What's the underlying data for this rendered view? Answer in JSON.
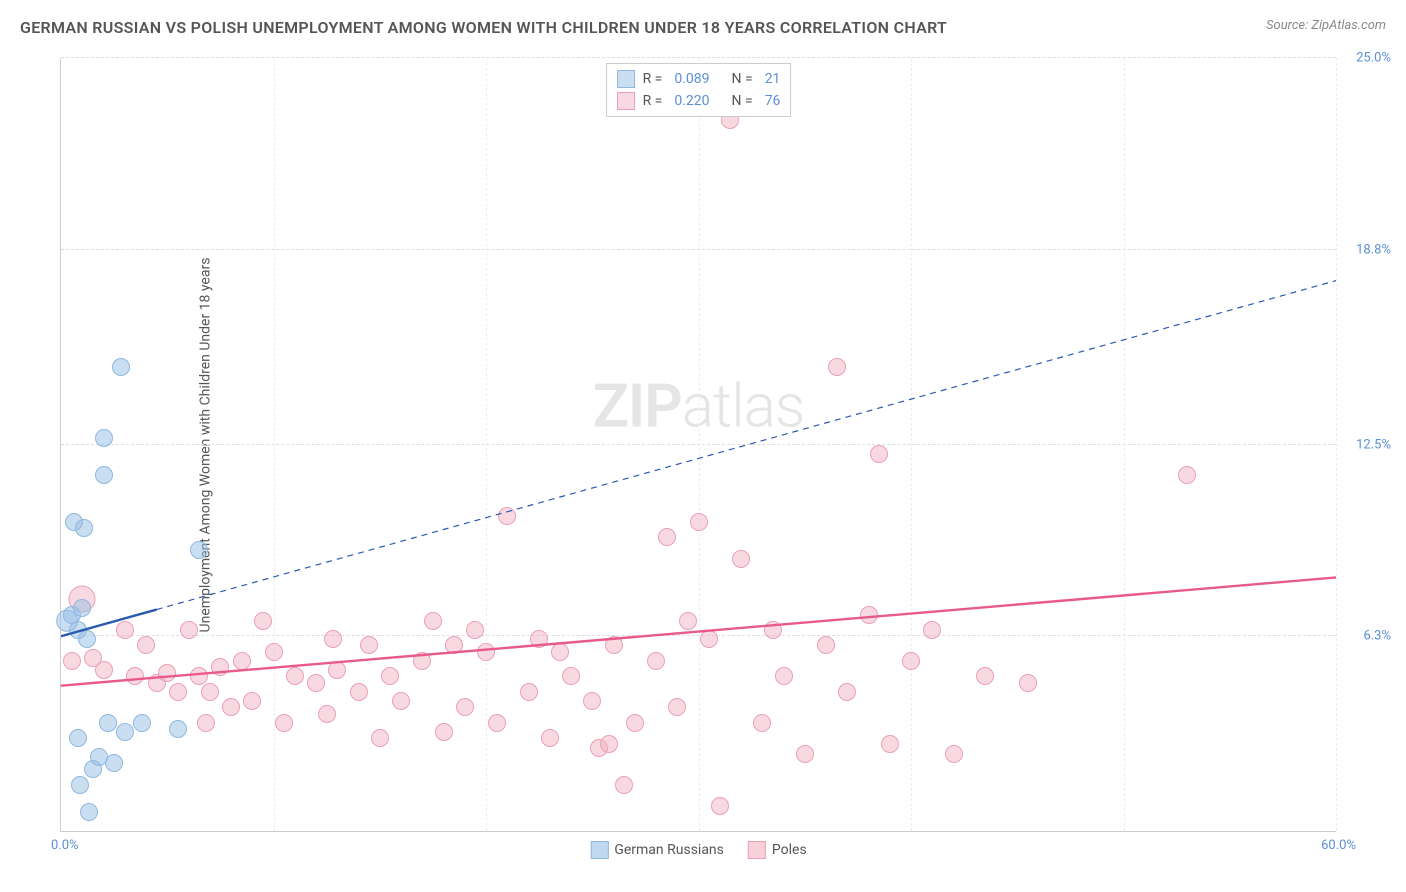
{
  "header": {
    "title": "GERMAN RUSSIAN VS POLISH UNEMPLOYMENT AMONG WOMEN WITH CHILDREN UNDER 18 YEARS CORRELATION CHART",
    "source": "Source: ZipAtlas.com"
  },
  "watermark": {
    "part1": "ZIP",
    "part2": "atlas"
  },
  "chart": {
    "type": "scatter",
    "ylabel": "Unemployment Among Women with Children Under 18 years",
    "xlim": [
      0,
      60
    ],
    "ylim": [
      0,
      25
    ],
    "x_ticks": [
      {
        "pos": 0,
        "label": "0.0%"
      },
      {
        "pos": 60,
        "label": "60.0%"
      }
    ],
    "x_gridlines": [
      10,
      20,
      30,
      40,
      50,
      60
    ],
    "y_ticks": [
      {
        "pos": 6.3,
        "label": "6.3%"
      },
      {
        "pos": 12.5,
        "label": "12.5%"
      },
      {
        "pos": 18.8,
        "label": "18.8%"
      },
      {
        "pos": 25.0,
        "label": "25.0%"
      }
    ],
    "background_color": "#ffffff",
    "grid_color": "#dddddd",
    "series": [
      {
        "name": "German Russians",
        "color_fill": "rgba(150,190,230,0.5)",
        "color_stroke": "#8fb8e0",
        "trend_color": "#2a5bb0",
        "trend_dash_after_x": 4.5,
        "R": "0.089",
        "N": "21",
        "point_radius": 9,
        "points": [
          [
            0.3,
            6.8,
            1.2
          ],
          [
            0.5,
            7.0
          ],
          [
            0.8,
            6.5
          ],
          [
            1.0,
            7.2
          ],
          [
            1.2,
            6.2
          ],
          [
            0.6,
            10.0
          ],
          [
            2.0,
            11.5
          ],
          [
            2.2,
            3.5
          ],
          [
            1.5,
            2.0
          ],
          [
            0.8,
            3.0
          ],
          [
            3.0,
            3.2
          ],
          [
            5.5,
            3.3
          ],
          [
            2.8,
            15.0
          ],
          [
            2.0,
            12.7
          ],
          [
            6.5,
            9.1
          ],
          [
            0.9,
            1.5
          ],
          [
            2.5,
            2.2
          ],
          [
            1.8,
            2.4
          ],
          [
            1.1,
            9.8
          ],
          [
            3.8,
            3.5
          ],
          [
            1.3,
            0.6
          ]
        ],
        "trendline": {
          "x1": 0,
          "y1": 6.3,
          "x2": 60,
          "y2": 17.8
        }
      },
      {
        "name": "Poles",
        "color_fill": "rgba(240,170,190,0.45)",
        "color_stroke": "#eaa0b5",
        "trend_color": "#e85a8a",
        "R": "0.220",
        "N": "76",
        "point_radius": 9,
        "points": [
          [
            1.0,
            7.5,
            1.5
          ],
          [
            0.5,
            5.5
          ],
          [
            1.5,
            5.6
          ],
          [
            2.0,
            5.2
          ],
          [
            3.0,
            6.5
          ],
          [
            3.5,
            5.0
          ],
          [
            4.0,
            6.0
          ],
          [
            4.5,
            4.8
          ],
          [
            5.0,
            5.1
          ],
          [
            5.5,
            4.5
          ],
          [
            6.0,
            6.5
          ],
          [
            6.5,
            5.0
          ],
          [
            7.0,
            4.5
          ],
          [
            7.5,
            5.3
          ],
          [
            8.0,
            4.0
          ],
          [
            8.5,
            5.5
          ],
          [
            9.0,
            4.2
          ],
          [
            10.0,
            5.8
          ],
          [
            10.5,
            3.5
          ],
          [
            11.0,
            5.0
          ],
          [
            12.0,
            4.8
          ],
          [
            12.5,
            3.8
          ],
          [
            13.0,
            5.2
          ],
          [
            14.0,
            4.5
          ],
          [
            14.5,
            6.0
          ],
          [
            15.0,
            3.0
          ],
          [
            15.5,
            5.0
          ],
          [
            16.0,
            4.2
          ],
          [
            17.0,
            5.5
          ],
          [
            18.0,
            3.2
          ],
          [
            18.5,
            6.0
          ],
          [
            19.0,
            4.0
          ],
          [
            20.0,
            5.8
          ],
          [
            20.5,
            3.5
          ],
          [
            21.0,
            10.2
          ],
          [
            22.0,
            4.5
          ],
          [
            22.5,
            6.2
          ],
          [
            23.0,
            3.0
          ],
          [
            24.0,
            5.0
          ],
          [
            25.0,
            4.2
          ],
          [
            25.3,
            2.7
          ],
          [
            25.8,
            2.8
          ],
          [
            26.0,
            6.0
          ],
          [
            26.5,
            1.5
          ],
          [
            27.0,
            3.5
          ],
          [
            28.0,
            5.5
          ],
          [
            28.5,
            9.5
          ],
          [
            29.0,
            4.0
          ],
          [
            30.0,
            10.0
          ],
          [
            30.5,
            6.2
          ],
          [
            31.0,
            0.8
          ],
          [
            31.5,
            23.0
          ],
          [
            32.0,
            8.8
          ],
          [
            33.0,
            3.5
          ],
          [
            33.5,
            6.5
          ],
          [
            34.0,
            5.0
          ],
          [
            35.0,
            2.5
          ],
          [
            36.0,
            6.0
          ],
          [
            36.5,
            15.0
          ],
          [
            37.0,
            4.5
          ],
          [
            38.0,
            7.0
          ],
          [
            38.5,
            12.2
          ],
          [
            39.0,
            2.8
          ],
          [
            40.0,
            5.5
          ],
          [
            41.0,
            6.5
          ],
          [
            42.0,
            2.5
          ],
          [
            43.5,
            5.0
          ],
          [
            45.5,
            4.8
          ],
          [
            53.0,
            11.5
          ],
          [
            29.5,
            6.8
          ],
          [
            17.5,
            6.8
          ],
          [
            23.5,
            5.8
          ],
          [
            12.8,
            6.2
          ],
          [
            19.5,
            6.5
          ],
          [
            9.5,
            6.8
          ],
          [
            6.8,
            3.5
          ]
        ],
        "trendline": {
          "x1": 0,
          "y1": 4.7,
          "x2": 60,
          "y2": 8.2
        }
      }
    ],
    "legend_bottom": [
      {
        "label": "German Russians",
        "fill": "rgba(150,190,230,0.6)",
        "stroke": "#8fb8e0"
      },
      {
        "label": "Poles",
        "fill": "rgba(240,170,190,0.55)",
        "stroke": "#eaa0b5"
      }
    ]
  }
}
